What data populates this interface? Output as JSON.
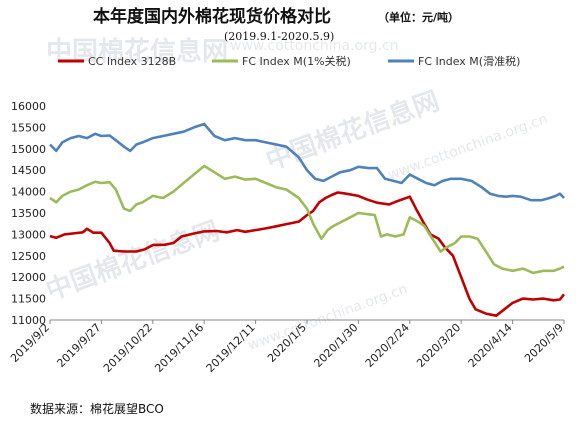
{
  "watermark": {
    "cn": "中国棉花信息网",
    "url": "www.cottonchina.org.cn"
  },
  "chart_data": {
    "type": "line",
    "title": "本年度国内外棉花现货价格对比",
    "unit_label": "（单位：元/吨）",
    "subtitle": "(2019.9.1-2020.5.9)",
    "ylim": [
      11000,
      16000
    ],
    "yticks": [
      11000,
      11500,
      12000,
      12500,
      13000,
      13500,
      14000,
      14500,
      15000,
      15500,
      16000
    ],
    "xlim": [
      "2019-09-02",
      "2020-05-09"
    ],
    "xticks": [
      "2019/9/2",
      "2019/9/27",
      "2019/10/22",
      "2019/11/16",
      "2019/12/11",
      "2020/1/5",
      "2020/1/30",
      "2020/2/24",
      "2020/3/20",
      "2020/4/14",
      "2020/5/9"
    ],
    "grid": false,
    "legend_position": "top",
    "source": "数据来源：棉花展望BCO",
    "series": [
      {
        "name": "CC Index 3128B",
        "color": "#c00000",
        "points": [
          [
            "2019-09-02",
            12960
          ],
          [
            "2019-09-05",
            12920
          ],
          [
            "2019-09-09",
            13000
          ],
          [
            "2019-09-13",
            13020
          ],
          [
            "2019-09-18",
            13050
          ],
          [
            "2019-09-20",
            13130
          ],
          [
            "2019-09-23",
            13040
          ],
          [
            "2019-09-27",
            13040
          ],
          [
            "2019-10-01",
            12800
          ],
          [
            "2019-10-03",
            12620
          ],
          [
            "2019-10-08",
            12600
          ],
          [
            "2019-10-14",
            12600
          ],
          [
            "2019-10-18",
            12650
          ],
          [
            "2019-10-22",
            12750
          ],
          [
            "2019-10-28",
            12760
          ],
          [
            "2019-11-01",
            12800
          ],
          [
            "2019-11-05",
            12950
          ],
          [
            "2019-11-11",
            13020
          ],
          [
            "2019-11-16",
            13070
          ],
          [
            "2019-11-22",
            13080
          ],
          [
            "2019-11-27",
            13050
          ],
          [
            "2019-12-02",
            13100
          ],
          [
            "2019-12-06",
            13060
          ],
          [
            "2019-12-11",
            13100
          ],
          [
            "2019-12-16",
            13140
          ],
          [
            "2019-12-21",
            13190
          ],
          [
            "2019-12-26",
            13240
          ],
          [
            "2020-01-01",
            13300
          ],
          [
            "2020-01-05",
            13450
          ],
          [
            "2020-01-08",
            13550
          ],
          [
            "2020-01-11",
            13750
          ],
          [
            "2020-01-14",
            13850
          ],
          [
            "2020-01-17",
            13920
          ],
          [
            "2020-01-20",
            13980
          ],
          [
            "2020-01-23",
            13960
          ],
          [
            "2020-01-30",
            13900
          ],
          [
            "2020-02-03",
            13820
          ],
          [
            "2020-02-08",
            13740
          ],
          [
            "2020-02-14",
            13700
          ],
          [
            "2020-02-17",
            13760
          ],
          [
            "2020-02-24",
            13880
          ],
          [
            "2020-02-27",
            13600
          ],
          [
            "2020-03-02",
            13250
          ],
          [
            "2020-03-05",
            13000
          ],
          [
            "2020-03-09",
            12900
          ],
          [
            "2020-03-12",
            12700
          ],
          [
            "2020-03-16",
            12500
          ],
          [
            "2020-03-20",
            12000
          ],
          [
            "2020-03-24",
            11500
          ],
          [
            "2020-03-27",
            11250
          ],
          [
            "2020-04-01",
            11150
          ],
          [
            "2020-04-06",
            11100
          ],
          [
            "2020-04-10",
            11250
          ],
          [
            "2020-04-14",
            11400
          ],
          [
            "2020-04-19",
            11500
          ],
          [
            "2020-04-24",
            11480
          ],
          [
            "2020-04-29",
            11500
          ],
          [
            "2020-05-04",
            11460
          ],
          [
            "2020-05-07",
            11480
          ],
          [
            "2020-05-09",
            11600
          ]
        ]
      },
      {
        "name": "FC Index M(1%关税)",
        "color": "#9bbb59",
        "points": [
          [
            "2019-09-02",
            13850
          ],
          [
            "2019-09-05",
            13750
          ],
          [
            "2019-09-08",
            13900
          ],
          [
            "2019-09-12",
            14000
          ],
          [
            "2019-09-16",
            14050
          ],
          [
            "2019-09-20",
            14150
          ],
          [
            "2019-09-24",
            14230
          ],
          [
            "2019-09-27",
            14200
          ],
          [
            "2019-10-01",
            14220
          ],
          [
            "2019-10-04",
            14050
          ],
          [
            "2019-10-08",
            13600
          ],
          [
            "2019-10-11",
            13550
          ],
          [
            "2019-10-14",
            13700
          ],
          [
            "2019-10-17",
            13750
          ],
          [
            "2019-10-22",
            13900
          ],
          [
            "2019-10-27",
            13850
          ],
          [
            "2019-11-01",
            14000
          ],
          [
            "2019-11-06",
            14200
          ],
          [
            "2019-11-11",
            14400
          ],
          [
            "2019-11-16",
            14600
          ],
          [
            "2019-11-21",
            14450
          ],
          [
            "2019-11-26",
            14300
          ],
          [
            "2019-12-01",
            14350
          ],
          [
            "2019-12-06",
            14280
          ],
          [
            "2019-12-11",
            14300
          ],
          [
            "2019-12-16",
            14200
          ],
          [
            "2019-12-21",
            14100
          ],
          [
            "2019-12-26",
            14050
          ],
          [
            "2020-01-01",
            13850
          ],
          [
            "2020-01-05",
            13600
          ],
          [
            "2020-01-08",
            13250
          ],
          [
            "2020-01-12",
            12900
          ],
          [
            "2020-01-15",
            13100
          ],
          [
            "2020-01-18",
            13200
          ],
          [
            "2020-01-22",
            13300
          ],
          [
            "2020-01-26",
            13400
          ],
          [
            "2020-01-30",
            13500
          ],
          [
            "2020-02-04",
            13470
          ],
          [
            "2020-02-07",
            13450
          ],
          [
            "2020-02-10",
            12950
          ],
          [
            "2020-02-13",
            13000
          ],
          [
            "2020-02-17",
            12950
          ],
          [
            "2020-02-21",
            13000
          ],
          [
            "2020-02-24",
            13400
          ],
          [
            "2020-02-28",
            13300
          ],
          [
            "2020-03-02",
            13200
          ],
          [
            "2020-03-06",
            12900
          ],
          [
            "2020-03-10",
            12600
          ],
          [
            "2020-03-13",
            12700
          ],
          [
            "2020-03-17",
            12800
          ],
          [
            "2020-03-20",
            12950
          ],
          [
            "2020-03-24",
            12950
          ],
          [
            "2020-03-28",
            12900
          ],
          [
            "2020-04-01",
            12600
          ],
          [
            "2020-04-05",
            12300
          ],
          [
            "2020-04-09",
            12200
          ],
          [
            "2020-04-14",
            12150
          ],
          [
            "2020-04-19",
            12200
          ],
          [
            "2020-04-24",
            12100
          ],
          [
            "2020-04-29",
            12150
          ],
          [
            "2020-05-04",
            12150
          ],
          [
            "2020-05-07",
            12200
          ],
          [
            "2020-05-09",
            12250
          ]
        ]
      },
      {
        "name": "FC Index M(滑准税)",
        "color": "#4f81bd",
        "points": [
          [
            "2019-09-02",
            15100
          ],
          [
            "2019-09-05",
            14950
          ],
          [
            "2019-09-08",
            15150
          ],
          [
            "2019-09-12",
            15250
          ],
          [
            "2019-09-16",
            15300
          ],
          [
            "2019-09-20",
            15250
          ],
          [
            "2019-09-24",
            15350
          ],
          [
            "2019-09-27",
            15300
          ],
          [
            "2019-10-01",
            15310
          ],
          [
            "2019-10-04",
            15200
          ],
          [
            "2019-10-08",
            15050
          ],
          [
            "2019-10-11",
            14950
          ],
          [
            "2019-10-14",
            15100
          ],
          [
            "2019-10-17",
            15150
          ],
          [
            "2019-10-22",
            15250
          ],
          [
            "2019-10-27",
            15300
          ],
          [
            "2019-11-01",
            15350
          ],
          [
            "2019-11-06",
            15400
          ],
          [
            "2019-11-11",
            15500
          ],
          [
            "2019-11-16",
            15580
          ],
          [
            "2019-11-21",
            15300
          ],
          [
            "2019-11-26",
            15200
          ],
          [
            "2019-12-01",
            15250
          ],
          [
            "2019-12-06",
            15200
          ],
          [
            "2019-12-11",
            15200
          ],
          [
            "2019-12-16",
            15150
          ],
          [
            "2019-12-21",
            15100
          ],
          [
            "2019-12-26",
            15050
          ],
          [
            "2020-01-01",
            14800
          ],
          [
            "2020-01-05",
            14500
          ],
          [
            "2020-01-09",
            14300
          ],
          [
            "2020-01-13",
            14250
          ],
          [
            "2020-01-17",
            14350
          ],
          [
            "2020-01-21",
            14450
          ],
          [
            "2020-01-26",
            14500
          ],
          [
            "2020-01-30",
            14580
          ],
          [
            "2020-02-04",
            14550
          ],
          [
            "2020-02-08",
            14550
          ],
          [
            "2020-02-12",
            14300
          ],
          [
            "2020-02-16",
            14250
          ],
          [
            "2020-02-20",
            14200
          ],
          [
            "2020-02-24",
            14400
          ],
          [
            "2020-02-28",
            14300
          ],
          [
            "2020-03-03",
            14200
          ],
          [
            "2020-03-07",
            14150
          ],
          [
            "2020-03-11",
            14250
          ],
          [
            "2020-03-15",
            14300
          ],
          [
            "2020-03-20",
            14300
          ],
          [
            "2020-03-25",
            14250
          ],
          [
            "2020-03-30",
            14100
          ],
          [
            "2020-04-03",
            13950
          ],
          [
            "2020-04-07",
            13900
          ],
          [
            "2020-04-11",
            13880
          ],
          [
            "2020-04-14",
            13900
          ],
          [
            "2020-04-18",
            13880
          ],
          [
            "2020-04-23",
            13800
          ],
          [
            "2020-04-28",
            13800
          ],
          [
            "2020-05-02",
            13850
          ],
          [
            "2020-05-05",
            13900
          ],
          [
            "2020-05-07",
            13950
          ],
          [
            "2020-05-09",
            13850
          ]
        ]
      }
    ]
  }
}
